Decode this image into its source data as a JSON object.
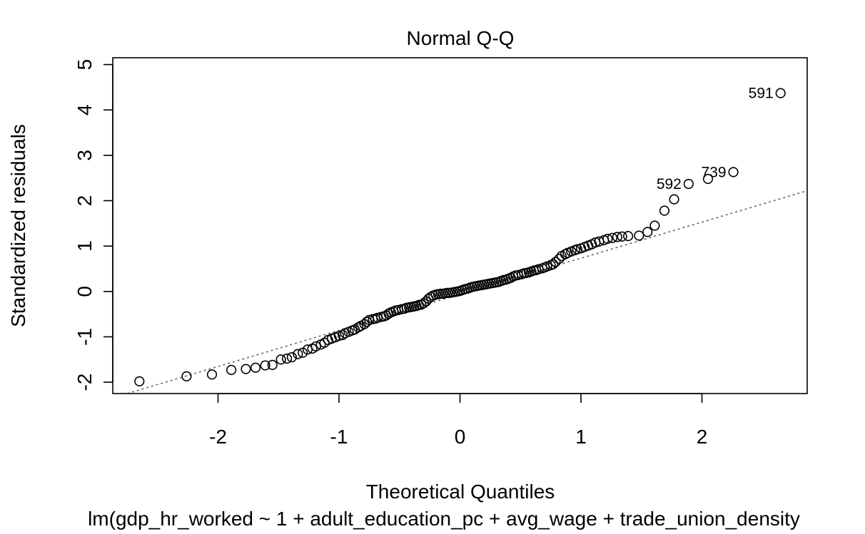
{
  "chart_data": {
    "type": "scatter",
    "title": "Normal Q-Q",
    "xlabel": "Theoretical Quantiles",
    "ylabel": "Standardized residuals",
    "subtitle": "lm(gdp_hr_worked ~ 1 + adult_education_pc + avg_wage + trade_union_density",
    "xlim": [
      -2.87,
      2.87
    ],
    "ylim": [
      -2.25,
      5.15
    ],
    "xticks": [
      -2,
      -1,
      0,
      1,
      2
    ],
    "yticks": [
      -2,
      -1,
      0,
      1,
      2,
      3,
      4,
      5
    ],
    "grid": false,
    "reference_line": {
      "style": "dotted",
      "color": "#666666",
      "points": [
        [
          -2.75,
          -2.25
        ],
        [
          2.87,
          2.22
        ]
      ]
    },
    "points": [
      [
        -2.65,
        -1.98
      ],
      [
        -2.26,
        -1.87
      ],
      [
        -2.05,
        -1.83
      ],
      [
        -1.89,
        -1.73
      ],
      [
        -1.77,
        -1.71
      ],
      [
        -1.69,
        -1.68
      ],
      [
        -1.61,
        -1.63
      ],
      [
        -1.55,
        -1.62
      ],
      [
        -1.48,
        -1.5
      ],
      [
        -1.43,
        -1.48
      ],
      [
        -1.39,
        -1.45
      ],
      [
        -1.34,
        -1.38
      ],
      [
        -1.3,
        -1.35
      ],
      [
        -1.26,
        -1.28
      ],
      [
        -1.22,
        -1.26
      ],
      [
        -1.19,
        -1.21
      ],
      [
        -1.15,
        -1.17
      ],
      [
        -1.12,
        -1.13
      ],
      [
        -1.09,
        -1.07
      ],
      [
        -1.06,
        -1.04
      ],
      [
        -1.03,
        -1.01
      ],
      [
        -1.0,
        -0.98
      ],
      [
        -0.97,
        -0.96
      ],
      [
        -0.95,
        -0.92
      ],
      [
        -0.92,
        -0.89
      ],
      [
        -0.89,
        -0.86
      ],
      [
        -0.87,
        -0.84
      ],
      [
        -0.84,
        -0.79
      ],
      [
        -0.82,
        -0.76
      ],
      [
        -0.79,
        -0.72
      ],
      [
        -0.77,
        -0.67
      ],
      [
        -0.75,
        -0.63
      ],
      [
        -0.72,
        -0.61
      ],
      [
        -0.7,
        -0.6
      ],
      [
        -0.68,
        -0.58
      ],
      [
        -0.65,
        -0.56
      ],
      [
        -0.63,
        -0.55
      ],
      [
        -0.61,
        -0.53
      ],
      [
        -0.59,
        -0.49
      ],
      [
        -0.57,
        -0.46
      ],
      [
        -0.55,
        -0.44
      ],
      [
        -0.53,
        -0.42
      ],
      [
        -0.51,
        -0.41
      ],
      [
        -0.48,
        -0.39
      ],
      [
        -0.46,
        -0.38
      ],
      [
        -0.44,
        -0.36
      ],
      [
        -0.42,
        -0.35
      ],
      [
        -0.4,
        -0.34
      ],
      [
        -0.38,
        -0.33
      ],
      [
        -0.36,
        -0.32
      ],
      [
        -0.34,
        -0.3
      ],
      [
        -0.32,
        -0.29
      ],
      [
        -0.3,
        -0.26
      ],
      [
        -0.28,
        -0.22
      ],
      [
        -0.26,
        -0.16
      ],
      [
        -0.24,
        -0.12
      ],
      [
        -0.22,
        -0.09
      ],
      [
        -0.2,
        -0.07
      ],
      [
        -0.18,
        -0.06
      ],
      [
        -0.16,
        -0.05
      ],
      [
        -0.14,
        -0.05
      ],
      [
        -0.12,
        -0.04
      ],
      [
        -0.1,
        -0.03
      ],
      [
        -0.08,
        -0.03
      ],
      [
        -0.06,
        -0.02
      ],
      [
        -0.04,
        -0.01
      ],
      [
        -0.02,
        0.0
      ],
      [
        0.0,
        0.01
      ],
      [
        0.02,
        0.03
      ],
      [
        0.04,
        0.05
      ],
      [
        0.06,
        0.06
      ],
      [
        0.08,
        0.08
      ],
      [
        0.1,
        0.1
      ],
      [
        0.12,
        0.11
      ],
      [
        0.14,
        0.12
      ],
      [
        0.16,
        0.13
      ],
      [
        0.18,
        0.14
      ],
      [
        0.2,
        0.15
      ],
      [
        0.22,
        0.16
      ],
      [
        0.24,
        0.17
      ],
      [
        0.26,
        0.18
      ],
      [
        0.28,
        0.19
      ],
      [
        0.3,
        0.2
      ],
      [
        0.32,
        0.21
      ],
      [
        0.34,
        0.23
      ],
      [
        0.36,
        0.25
      ],
      [
        0.38,
        0.26
      ],
      [
        0.4,
        0.28
      ],
      [
        0.42,
        0.3
      ],
      [
        0.44,
        0.33
      ],
      [
        0.46,
        0.35
      ],
      [
        0.48,
        0.36
      ],
      [
        0.51,
        0.38
      ],
      [
        0.53,
        0.4
      ],
      [
        0.55,
        0.41
      ],
      [
        0.57,
        0.42
      ],
      [
        0.59,
        0.44
      ],
      [
        0.61,
        0.46
      ],
      [
        0.63,
        0.47
      ],
      [
        0.65,
        0.49
      ],
      [
        0.68,
        0.51
      ],
      [
        0.7,
        0.53
      ],
      [
        0.72,
        0.55
      ],
      [
        0.75,
        0.58
      ],
      [
        0.77,
        0.6
      ],
      [
        0.79,
        0.65
      ],
      [
        0.82,
        0.72
      ],
      [
        0.84,
        0.78
      ],
      [
        0.87,
        0.82
      ],
      [
        0.89,
        0.85
      ],
      [
        0.92,
        0.88
      ],
      [
        0.95,
        0.91
      ],
      [
        0.97,
        0.93
      ],
      [
        1.0,
        0.95
      ],
      [
        1.03,
        0.98
      ],
      [
        1.06,
        1.01
      ],
      [
        1.09,
        1.04
      ],
      [
        1.12,
        1.08
      ],
      [
        1.15,
        1.1
      ],
      [
        1.19,
        1.13
      ],
      [
        1.22,
        1.16
      ],
      [
        1.26,
        1.18
      ],
      [
        1.3,
        1.2
      ],
      [
        1.34,
        1.21
      ],
      [
        1.39,
        1.22
      ],
      [
        1.48,
        1.23
      ],
      [
        1.55,
        1.31
      ],
      [
        1.61,
        1.45
      ],
      [
        1.69,
        1.78
      ],
      [
        1.77,
        2.03
      ],
      [
        1.89,
        2.37
      ],
      [
        2.05,
        2.48
      ],
      [
        2.26,
        2.63
      ],
      [
        2.65,
        4.37
      ]
    ],
    "point_labels": [
      {
        "text": "591",
        "x": 2.65,
        "y": 4.37
      },
      {
        "text": "739",
        "x": 2.26,
        "y": 2.63
      },
      {
        "text": "592",
        "x": 1.89,
        "y": 2.37
      }
    ]
  }
}
